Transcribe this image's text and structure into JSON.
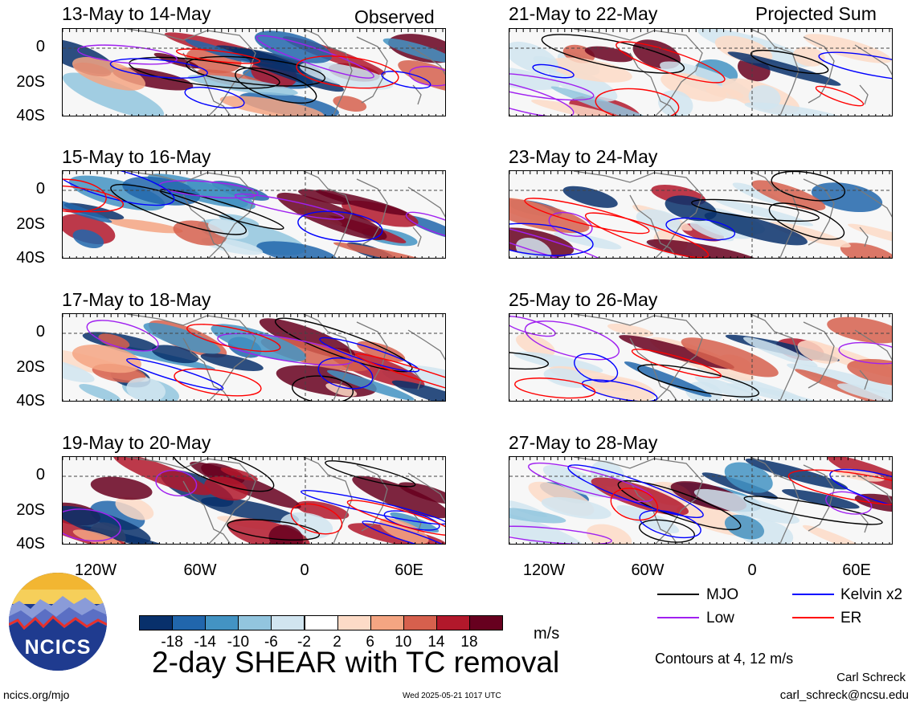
{
  "headers": {
    "left": "Observed",
    "right": "Projected Sum"
  },
  "panels_left": [
    {
      "period": "13-May to 14-May"
    },
    {
      "period": "15-May to 16-May"
    },
    {
      "period": "17-May to 18-May"
    },
    {
      "period": "19-May to 20-May"
    }
  ],
  "panels_right": [
    {
      "period": "21-May to 22-May"
    },
    {
      "period": "23-May to 24-May"
    },
    {
      "period": "25-May to 26-May"
    },
    {
      "period": "27-May to 28-May"
    }
  ],
  "chart_data": {
    "type": "heatmap",
    "title": "2-day SHEAR with TC removal",
    "units": "m/s",
    "x_ticks": [
      "120W",
      "60W",
      "0",
      "60E"
    ],
    "y_ticks": [
      "0",
      "20S",
      "40S"
    ],
    "colorbar": {
      "labels": [
        "-18",
        "-14",
        "-10",
        "-6",
        "-2",
        "2",
        "6",
        "10",
        "14",
        "18"
      ],
      "colors": [
        "#08306b",
        "#2166ac",
        "#4393c3",
        "#92c5de",
        "#d1e5f0",
        "#ffffff",
        "#fddbc7",
        "#f4a582",
        "#d6604d",
        "#b2182b",
        "#67001f"
      ]
    },
    "contours": {
      "note": "Contours at 4, 12 m/s",
      "series": [
        {
          "name": "MJO",
          "color": "#000000"
        },
        {
          "name": "Low",
          "color": "#a020f0"
        },
        {
          "name": "Kelvin x2",
          "color": "#0000ff"
        },
        {
          "name": "ER",
          "color": "#ff0000"
        }
      ]
    }
  },
  "footer": {
    "logo_text": "NCICS",
    "site": "ncics.org/mjo",
    "timestamp": "Wed 2025-05-21 1017 UTC",
    "author": "Carl Schreck",
    "email": "carl_schreck@ncsu.edu"
  }
}
